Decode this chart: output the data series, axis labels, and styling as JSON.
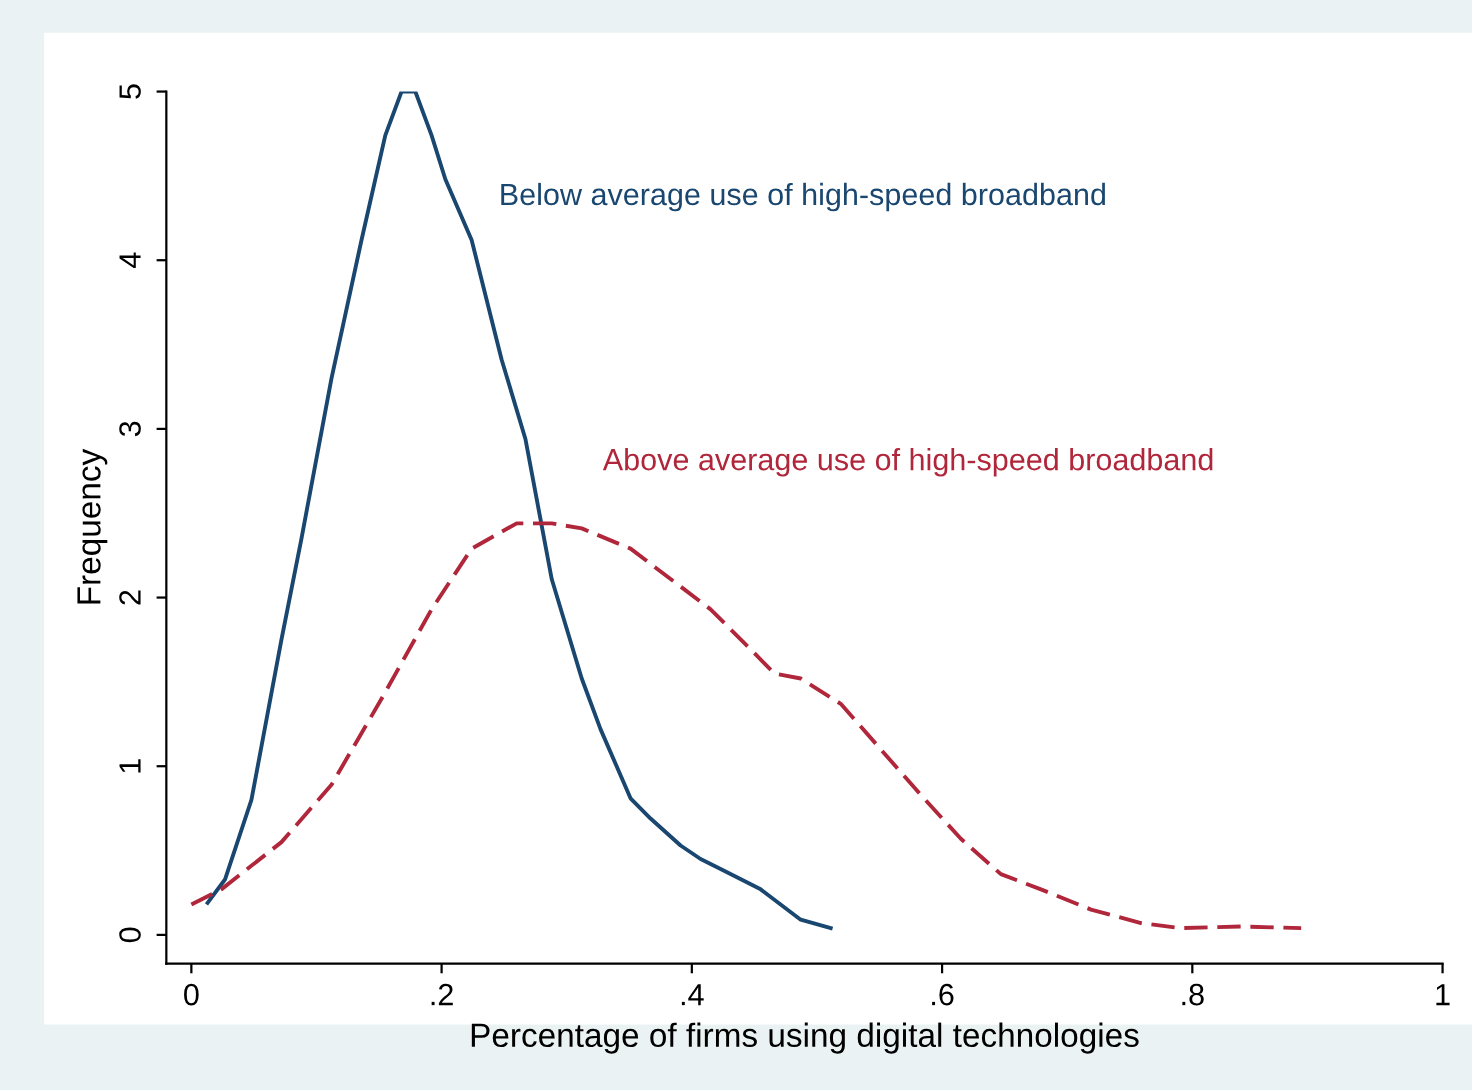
{
  "chart_data": {
    "type": "line",
    "xlabel": "Percentage of firms using digital technologies",
    "ylabel": "Frequency",
    "xlim": [
      -0.02,
      1
    ],
    "ylim": [
      -0.17,
      5
    ],
    "xticks": [
      {
        "value": 0,
        "label": "0"
      },
      {
        "value": 0.2,
        "label": ".2"
      },
      {
        "value": 0.4,
        "label": ".4"
      },
      {
        "value": 0.6,
        "label": ".6"
      },
      {
        "value": 0.8,
        "label": ".8"
      },
      {
        "value": 1,
        "label": "1"
      }
    ],
    "yticks": [
      0,
      1,
      2,
      3,
      4,
      5
    ],
    "grid": false,
    "legend": false,
    "series": [
      {
        "name": "Below average use of high-speed broadband",
        "color": "#1a476f",
        "line_style": "solid",
        "x": [
          0.013,
          0.027,
          0.048,
          0.072,
          0.088,
          0.112,
          0.136,
          0.155,
          0.168,
          0.179,
          0.192,
          0.203,
          0.224,
          0.248,
          0.267,
          0.288,
          0.312,
          0.327,
          0.351,
          0.367,
          0.391,
          0.407,
          0.423,
          0.455,
          0.487,
          0.511
        ],
        "values": [
          0.19,
          0.33,
          0.8,
          1.75,
          2.35,
          3.3,
          4.12,
          4.74,
          5.0,
          5.0,
          4.74,
          4.48,
          4.12,
          3.41,
          2.94,
          2.11,
          1.52,
          1.22,
          0.81,
          0.69,
          0.53,
          0.45,
          0.39,
          0.27,
          0.09,
          0.04
        ]
      },
      {
        "name": "Above average use of high-speed broadband",
        "color": "#b0263b",
        "line_style": "dashed",
        "x": [
          0,
          0.024,
          0.072,
          0.112,
          0.152,
          0.192,
          0.224,
          0.26,
          0.288,
          0.312,
          0.351,
          0.383,
          0.415,
          0.442,
          0.466,
          0.487,
          0.519,
          0.551,
          0.583,
          0.615,
          0.647,
          0.679,
          0.719,
          0.759,
          0.791,
          0.839,
          0.887
        ],
        "values": [
          0.18,
          0.27,
          0.55,
          0.89,
          1.4,
          1.93,
          2.29,
          2.44,
          2.44,
          2.41,
          2.29,
          2.11,
          1.93,
          1.73,
          1.55,
          1.52,
          1.37,
          1.1,
          0.83,
          0.57,
          0.36,
          0.27,
          0.15,
          0.07,
          0.04,
          0.05,
          0.04
        ]
      }
    ]
  }
}
